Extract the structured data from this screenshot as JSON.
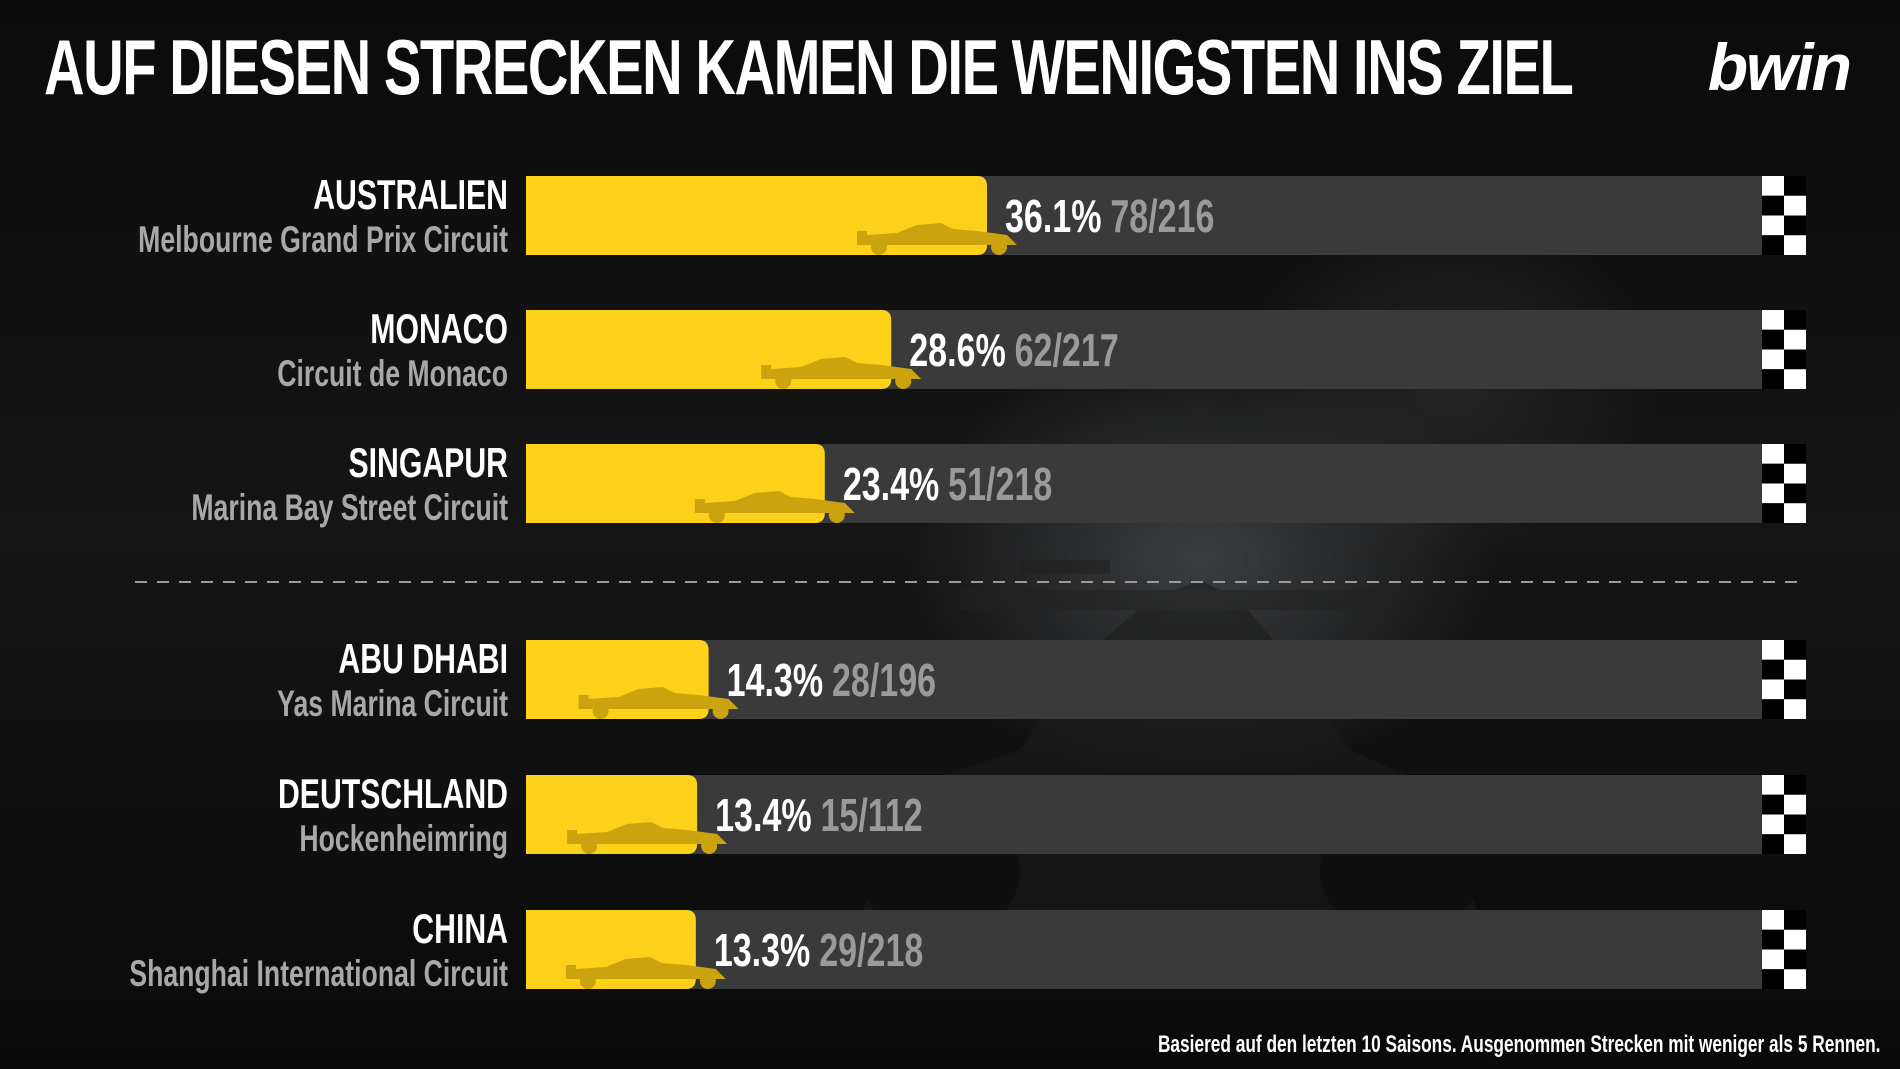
{
  "title": "AUF DIESEN STRECKEN KAMEN DIE WENIGSTEN INS ZIEL",
  "logo": "bwin",
  "footnote": "Basiered auf den letzten 10 Saisons. Ausgenommen Strecken mit weniger als 5 Rennen.",
  "colors": {
    "bar": "#fdd01a",
    "track": "#3a3a3a",
    "car_icon": "#caa30f",
    "label_primary": "#ffffff",
    "label_secondary": "#a8a8a8"
  },
  "icons": [
    "f1-car-icon",
    "checkered-flag-icon"
  ],
  "chart_data": {
    "type": "bar",
    "orientation": "horizontal",
    "xlim": [
      0,
      100
    ],
    "grid": false,
    "groups": [
      {
        "items": [
          {
            "country": "AUSTRALIEN",
            "circuit": "Melbourne Grand Prix Circuit",
            "value": 36.1,
            "pct_label": "36.1%",
            "finishers": 78,
            "starters": 216,
            "fraction_label": "78/216"
          },
          {
            "country": "MONACO",
            "circuit": "Circuit de Monaco",
            "value": 28.6,
            "pct_label": "28.6%",
            "finishers": 62,
            "starters": 217,
            "fraction_label": "62/217"
          },
          {
            "country": "SINGAPUR",
            "circuit": "Marina Bay Street Circuit",
            "value": 23.4,
            "pct_label": "23.4%",
            "finishers": 51,
            "starters": 218,
            "fraction_label": "51/218"
          }
        ]
      },
      {
        "items": [
          {
            "country": "ABU DHABI",
            "circuit": "Yas Marina Circuit",
            "value": 14.3,
            "pct_label": "14.3%",
            "finishers": 28,
            "starters": 196,
            "fraction_label": "28/196"
          },
          {
            "country": "DEUTSCHLAND",
            "circuit": "Hockenheimring",
            "value": 13.4,
            "pct_label": "13.4%",
            "finishers": 15,
            "starters": 112,
            "fraction_label": "15/112"
          },
          {
            "country": "CHINA",
            "circuit": "Shanghai International Circuit",
            "value": 13.3,
            "pct_label": "13.3%",
            "finishers": 29,
            "starters": 218,
            "fraction_label": "29/218"
          }
        ]
      }
    ]
  }
}
